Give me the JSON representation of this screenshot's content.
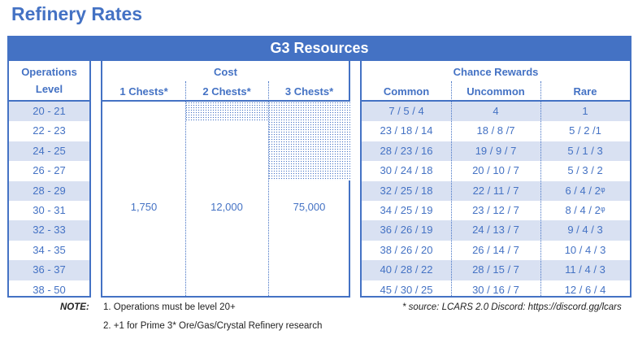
{
  "title": "Refinery Rates",
  "banner": "G3 Resources",
  "ops": {
    "header_line1": "Operations",
    "header_line2": "Level",
    "levels": [
      "20 - 21",
      "22 - 23",
      "24 - 25",
      "26 - 27",
      "28 - 29",
      "30 - 31",
      "32 - 33",
      "34 - 35",
      "36 - 37",
      "38 - 50"
    ]
  },
  "cost": {
    "header": "Cost",
    "columns": [
      "1 Chests*",
      "2 Chests*",
      "3 Chests*"
    ],
    "values": [
      "1,750",
      "12,000",
      "75,000"
    ]
  },
  "rewards": {
    "header": "Chance Rewards",
    "columns": [
      "Common",
      "Uncommon",
      "Rare"
    ],
    "rows": [
      [
        "7 / 5 / 4",
        "4",
        "1"
      ],
      [
        "23 / 18 / 14",
        "18 / 8 /7",
        "5 / 2 /1"
      ],
      [
        "28 / 23 / 16",
        "19 / 9 / 7",
        "5 / 1 / 3"
      ],
      [
        "30 / 24 / 18",
        "20 / 10 / 7",
        "5 / 3 / 2"
      ],
      [
        "32 / 25 / 18",
        "22 / 11 / 7",
        "6 / 4 / 2ᵠ"
      ],
      [
        "34 / 25 / 19",
        "23 / 12 / 7",
        "8 / 4 / 2ᵠ"
      ],
      [
        "36 / 26 / 19",
        "24 / 13 / 7",
        "9 / 4 / 3"
      ],
      [
        "38 / 26 / 20",
        "26 / 14 / 7",
        "10 / 4 / 3"
      ],
      [
        "40 / 28 / 22",
        "28 / 15 / 7",
        "11 / 4 / 3"
      ],
      [
        "45 / 30 / 25",
        "30 / 16 / 7",
        "12 / 6 / 4"
      ]
    ]
  },
  "notes": {
    "label": "NOTE:",
    "items": [
      "1.  Operations must be level 20+",
      "2.  +1 for Prime 3* Ore/Gas/Crystal Refinery research"
    ],
    "source": "* source: LCARS 2.0 Discord: https://discord.gg/lcars"
  },
  "colors": {
    "accent": "#4472C4",
    "shade": "#D9E1F2"
  }
}
